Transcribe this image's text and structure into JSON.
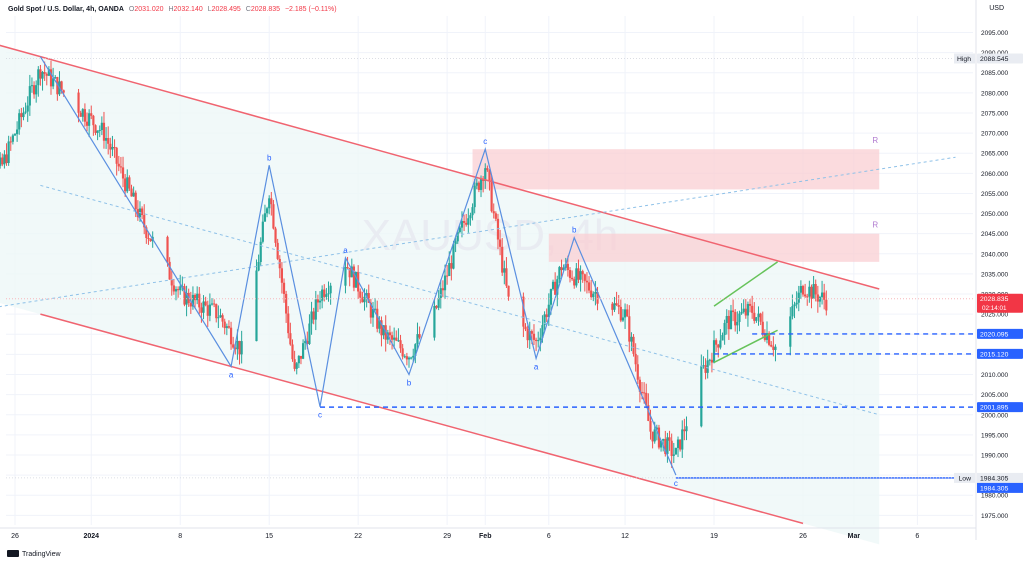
{
  "header": {
    "symbol": "Gold Spot / U.S. Dollar, 4h, OANDA",
    "open_label": "O",
    "open_value": "2031.020",
    "high_label": "H",
    "high_value": "2032.140",
    "low_label": "L",
    "low_value": "2028.495",
    "close_label": "C",
    "close_value": "2028.835",
    "change": "−2.185 (−0.11%)"
  },
  "currency": "USD",
  "brand": "TradingView",
  "watermark": "XAUUSD, 4h",
  "colors": {
    "up": "#26a69a",
    "down": "#ef5350",
    "channel": "#f06470",
    "wave": "#5a8fe0",
    "zone": "#f9cfd3",
    "green_channel": "#66c35a",
    "level_line": "#2962ff",
    "price_tag": "#f23645"
  },
  "chart_data": {
    "type": "candlestick",
    "y_axis": {
      "ylim": [
        1972.6,
        2099.1
      ],
      "ticks": [
        "1975.000",
        "1980.000",
        "1985.000",
        "1990.000",
        "1995.000",
        "2000.000",
        "2005.000",
        "2010.000",
        "2015.000",
        "2020.000",
        "2025.000",
        "2030.000",
        "2035.000",
        "2040.000",
        "2045.000",
        "2050.000",
        "2055.000",
        "2060.000",
        "2065.000",
        "2070.000",
        "2075.000",
        "2080.000",
        "2085.000",
        "2090.000",
        "2095.000"
      ]
    },
    "x_axis": {
      "labels": [
        "26",
        "2024",
        "8",
        "15",
        "22",
        "29",
        "Feb",
        "6",
        "12",
        "19",
        "26",
        "Mar",
        "6"
      ],
      "dates": [
        "2023-12-26",
        "2024-01-01",
        "2024-01-08",
        "2024-01-15",
        "2024-01-22",
        "2024-01-29",
        "2024-02-01",
        "2024-02-06",
        "2024-02-12",
        "2024-02-19",
        "2024-02-26",
        "2024-03-01",
        "2024-03-06"
      ]
    },
    "path_points": [
      {
        "date": "2023-12-22",
        "price": 2053
      },
      {
        "date": "2023-12-25",
        "price": 2062
      },
      {
        "date": "2023-12-28",
        "price": 2086
      },
      {
        "date": "2024-01-02",
        "price": 2070
      },
      {
        "date": "2024-01-05",
        "price": 2048
      },
      {
        "date": "2024-01-08",
        "price": 2030
      },
      {
        "date": "2024-01-11",
        "price": 2025
      },
      {
        "date": "2024-01-13",
        "price": 2015
      },
      {
        "date": "2024-01-15",
        "price": 2056
      },
      {
        "date": "2024-01-17",
        "price": 2010
      },
      {
        "date": "2024-01-19",
        "price": 2030
      },
      {
        "date": "2024-01-21",
        "price": 2038
      },
      {
        "date": "2024-01-24",
        "price": 2020
      },
      {
        "date": "2024-01-26",
        "price": 2015
      },
      {
        "date": "2024-01-28",
        "price": 2025
      },
      {
        "date": "2024-01-30",
        "price": 2045
      },
      {
        "date": "2024-02-01",
        "price": 2062
      },
      {
        "date": "2024-02-03",
        "price": 2025
      },
      {
        "date": "2024-02-05",
        "price": 2018
      },
      {
        "date": "2024-02-07",
        "price": 2037
      },
      {
        "date": "2024-02-09",
        "price": 2032
      },
      {
        "date": "2024-02-12",
        "price": 2025
      },
      {
        "date": "2024-02-14",
        "price": 1996
      },
      {
        "date": "2024-02-16",
        "price": 1990
      },
      {
        "date": "2024-02-18",
        "price": 2010
      },
      {
        "date": "2024-02-20",
        "price": 2023
      },
      {
        "date": "2024-02-22",
        "price": 2026
      },
      {
        "date": "2024-02-24",
        "price": 2016
      },
      {
        "date": "2024-02-26",
        "price": 2032
      },
      {
        "date": "2024-02-28",
        "price": 2028
      }
    ],
    "channel_upper": [
      {
        "date": "2023-12-28",
        "price": 2089
      },
      {
        "date": "2024-03-01",
        "price": 2033
      }
    ],
    "channel_lower": [
      {
        "date": "2023-12-28",
        "price": 2025
      },
      {
        "date": "2024-02-26",
        "price": 1973
      }
    ],
    "dashed_trend_1": [
      {
        "date": "2023-12-28",
        "price": 2057
      },
      {
        "date": "2024-03-03",
        "price": 2000
      }
    ],
    "dashed_trend_2": [
      {
        "date": "2023-12-21",
        "price": 2025
      },
      {
        "date": "2024-03-09",
        "price": 2064
      }
    ],
    "wave_path": [
      {
        "label": "",
        "date": "2023-12-28",
        "price": 2089
      },
      {
        "label": "a",
        "date": "2024-01-12",
        "price": 2012
      },
      {
        "label": "b",
        "date": "2024-01-15",
        "price": 2062
      },
      {
        "label": "c",
        "date": "2024-01-19",
        "price": 2002
      },
      {
        "label": "a",
        "date": "2024-01-21",
        "price": 2039
      },
      {
        "label": "b",
        "date": "2024-01-26",
        "price": 2010
      },
      {
        "label": "c",
        "date": "2024-02-01",
        "price": 2066
      },
      {
        "label": "a",
        "date": "2024-02-05",
        "price": 2014
      },
      {
        "label": "b",
        "date": "2024-02-08",
        "price": 2044
      },
      {
        "label": "c",
        "date": "2024-02-16",
        "price": 1985
      }
    ],
    "resistance_zones": [
      {
        "label": "R",
        "from_date": "2024-01-31",
        "to_date": "2024-03-03",
        "low": 2056,
        "high": 2066
      },
      {
        "label": "R",
        "from_date": "2024-02-06",
        "to_date": "2024-03-03",
        "low": 2038,
        "high": 2045
      }
    ],
    "green_channel": {
      "upper": [
        {
          "date": "2024-02-19",
          "price": 2027
        },
        {
          "date": "2024-02-24",
          "price": 2038
        }
      ],
      "lower": [
        {
          "date": "2024-02-19",
          "price": 2013
        },
        {
          "date": "2024-02-24",
          "price": 2021
        }
      ]
    },
    "levels": [
      {
        "price": 2020.095,
        "label": "2020.095",
        "from_date": "2024-02-22",
        "style": "dashed"
      },
      {
        "price": 2015.12,
        "label": "2015.120",
        "from_date": "2024-02-19",
        "style": "dashed"
      },
      {
        "price": 2001.895,
        "label": "2001.895",
        "from_date": "2024-01-19",
        "style": "dashed"
      },
      {
        "price": 1984.305,
        "label": "1984.305",
        "from_date": "2024-02-16",
        "style": "solid"
      }
    ],
    "marker_high": {
      "label": "High",
      "value": "2088.545",
      "price": 2088.545
    },
    "marker_low": {
      "label": "Low",
      "value": "1984.305",
      "price": 1984.305
    },
    "current_price": {
      "value": "2028.835",
      "countdown": "02:14:01",
      "price": 2028.835
    },
    "wave_labels": [
      "a",
      "b",
      "c",
      "a",
      "b",
      "c",
      "a",
      "b",
      "c"
    ],
    "zone_labels": [
      "R",
      "R"
    ]
  }
}
